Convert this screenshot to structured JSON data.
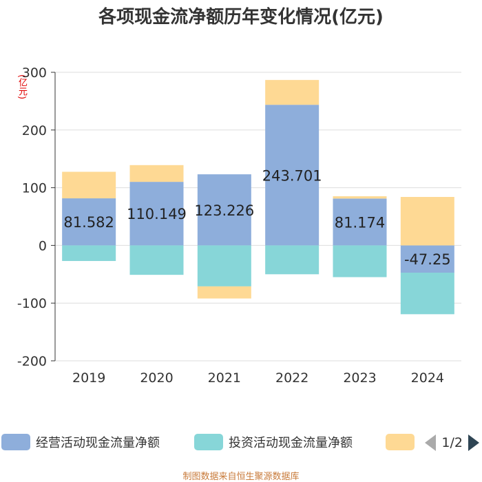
{
  "page_title": "各项现金流净额历年变化情况(亿元)",
  "source_text": "制图数据来自恒生聚源数据库",
  "pager": {
    "text": "1/2"
  },
  "chart_data": {
    "type": "bar",
    "stacked": true,
    "title": "各项现金流净额历年变化情况(亿元)",
    "ylabel": "(亿元)",
    "ylim": [
      -200,
      300
    ],
    "yticks": [
      -200,
      -100,
      0,
      100,
      200,
      300
    ],
    "categories": [
      "2019",
      "2020",
      "2021",
      "2022",
      "2023",
      "2024"
    ],
    "legend_position": "bottom",
    "series": [
      {
        "name": "经营活动现金流量净额",
        "color": "#8eaedb",
        "values": [
          81.582,
          110.149,
          123.226,
          243.701,
          81.174,
          -47.25
        ],
        "labels": [
          "81.582",
          "110.149",
          "123.226",
          "243.701",
          "81.174",
          "-47.25"
        ]
      },
      {
        "name": "投资活动现金流量净额",
        "color": "#87d6d8",
        "values": [
          -27,
          -51,
          -71,
          -50,
          -55,
          -72
        ]
      },
      {
        "name": "",
        "color": "#fed994",
        "values": [
          46,
          29,
          -21,
          43,
          4,
          84
        ]
      }
    ]
  }
}
